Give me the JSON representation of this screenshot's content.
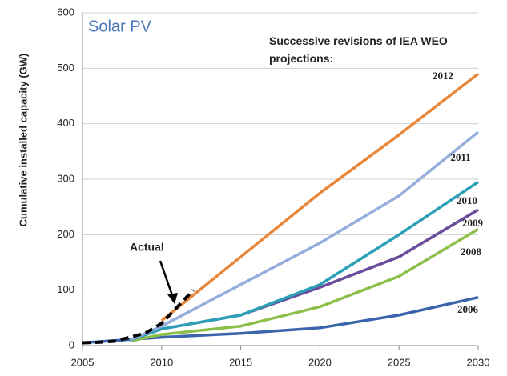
{
  "chart_data": {
    "type": "line",
    "title": "Solar PV",
    "annotation": "Successive revisions of IEA WEO projections:",
    "actual_label": "Actual",
    "y_label": "Cumulative installed capacity (GW)",
    "xlim": [
      2005,
      2030
    ],
    "xticks": [
      2005,
      2010,
      2015,
      2020,
      2025,
      2030
    ],
    "ylim": [
      0,
      600
    ],
    "yticks": [
      0,
      100,
      200,
      300,
      400,
      500,
      600
    ],
    "grid": true,
    "series": [
      {
        "name": "2006",
        "color": "#3b64ad",
        "x": [
          2005,
          2010,
          2015,
          2020,
          2025,
          2030
        ],
        "values": [
          5,
          15,
          22,
          32,
          55,
          87
        ]
      },
      {
        "name": "2008",
        "color": "#8cbf4a",
        "x": [
          2008,
          2010,
          2015,
          2020,
          2025,
          2030
        ],
        "values": [
          8,
          20,
          35,
          70,
          125,
          210
        ]
      },
      {
        "name": "2009",
        "color": "#6a4c9c",
        "x": [
          2008,
          2010,
          2015,
          2020,
          2025,
          2030
        ],
        "values": [
          10,
          30,
          55,
          105,
          160,
          245
        ]
      },
      {
        "name": "2010",
        "color": "#2b9fb5",
        "x": [
          2008,
          2010,
          2015,
          2020,
          2025,
          2030
        ],
        "values": [
          10,
          30,
          55,
          110,
          200,
          295
        ]
      },
      {
        "name": "2011",
        "color": "#95aedb",
        "x": [
          2008,
          2010,
          2015,
          2020,
          2025,
          2030
        ],
        "values": [
          10,
          35,
          110,
          185,
          270,
          385
        ]
      },
      {
        "name": "2012",
        "color": "#e8873a",
        "x": [
          2010,
          2015,
          2020,
          2025,
          2030
        ],
        "values": [
          45,
          160,
          275,
          380,
          490
        ]
      },
      {
        "name": "Actual",
        "color": "#000000",
        "dashed": true,
        "x": [
          2005,
          2006,
          2007,
          2008,
          2009,
          2010,
          2011,
          2012
        ],
        "values": [
          5,
          6,
          8,
          15,
          23,
          40,
          70,
          100
        ]
      }
    ]
  }
}
